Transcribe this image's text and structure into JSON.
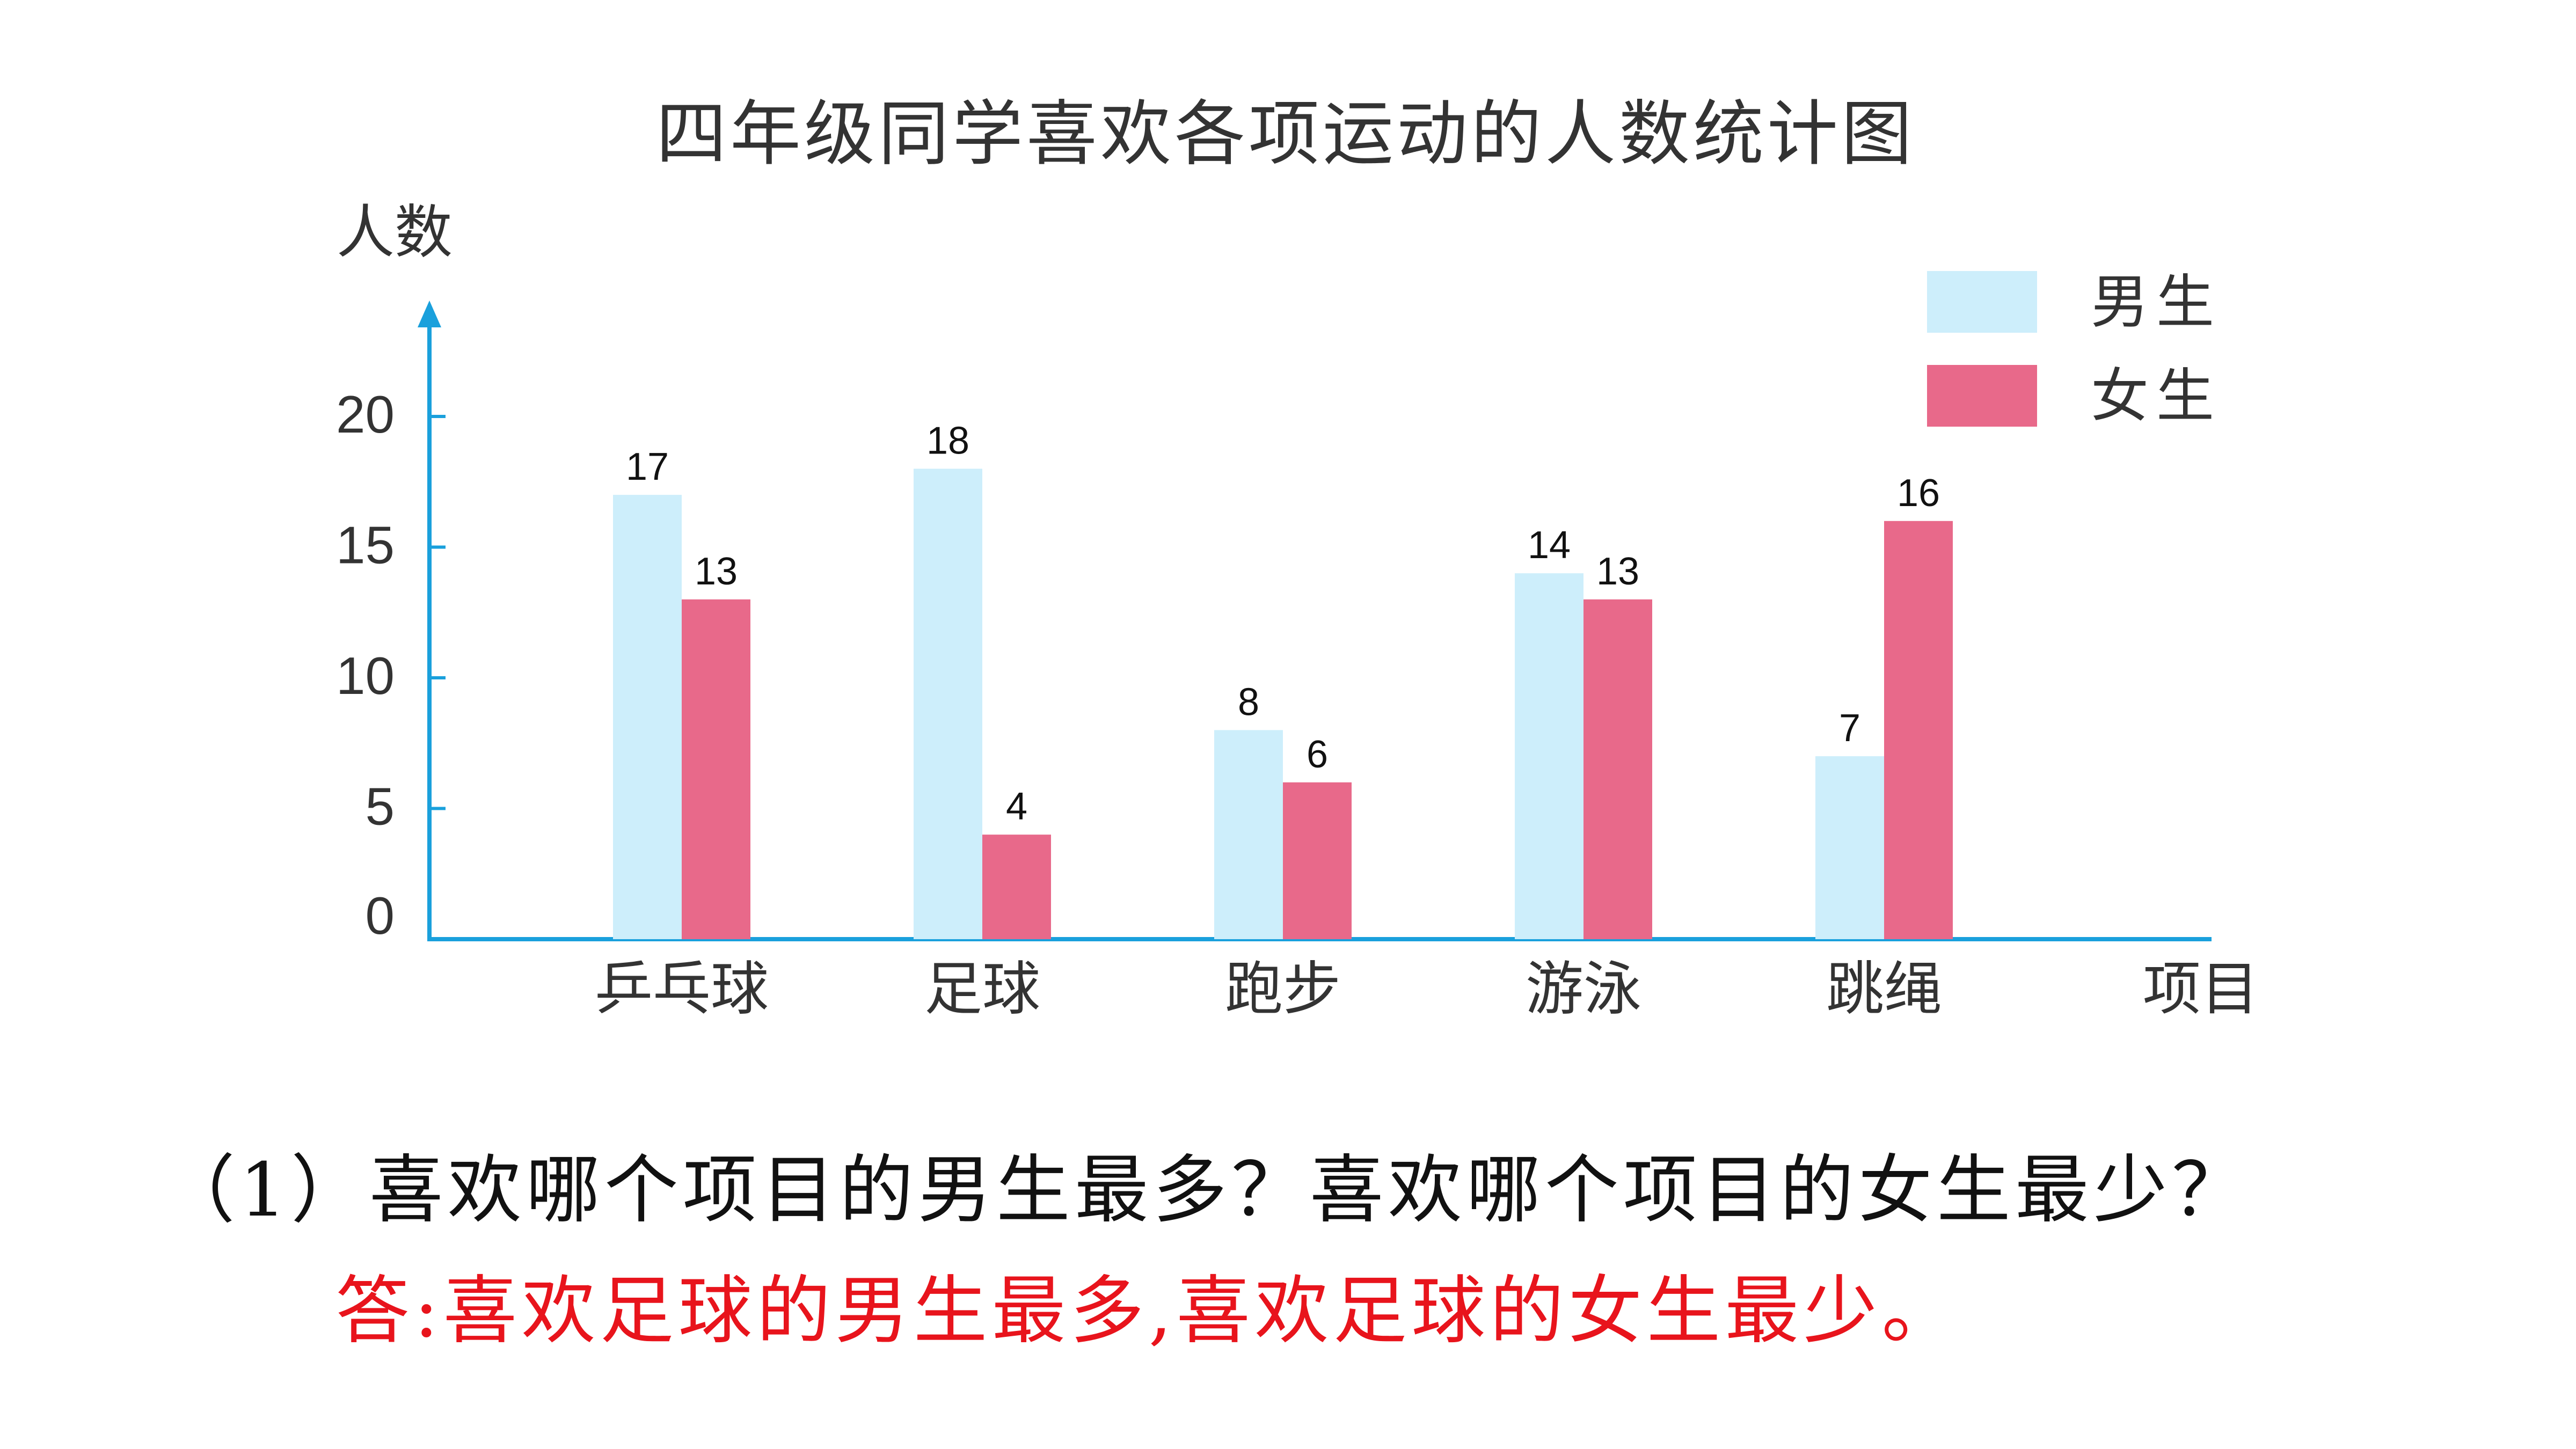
{
  "chart_data": {
    "type": "bar",
    "title": "四年级同学喜欢各项运动的人数统计图",
    "ylabel": "人数",
    "xlabel": "项目",
    "ylim": [
      0,
      20
    ],
    "yticks": [
      0,
      5,
      10,
      15,
      20
    ],
    "grid": false,
    "legend_position": "top-right",
    "categories": [
      "乒乓球",
      "足球",
      "跑步",
      "游泳",
      "跳绳"
    ],
    "series": [
      {
        "name": "男生",
        "color": "#cdeefb",
        "values": [
          17,
          18,
          8,
          14,
          7
        ]
      },
      {
        "name": "女生",
        "color": "#e8698a",
        "values": [
          13,
          4,
          6,
          13,
          16
        ]
      }
    ],
    "axis_color": "#1aa0dc"
  },
  "question": {
    "text": "（1）喜欢哪个项目的男生最多？喜欢哪个项目的女生最少？"
  },
  "answer": {
    "text": "答:喜欢足球的男生最多,喜欢足球的女生最少。",
    "color": "#e8141c"
  }
}
